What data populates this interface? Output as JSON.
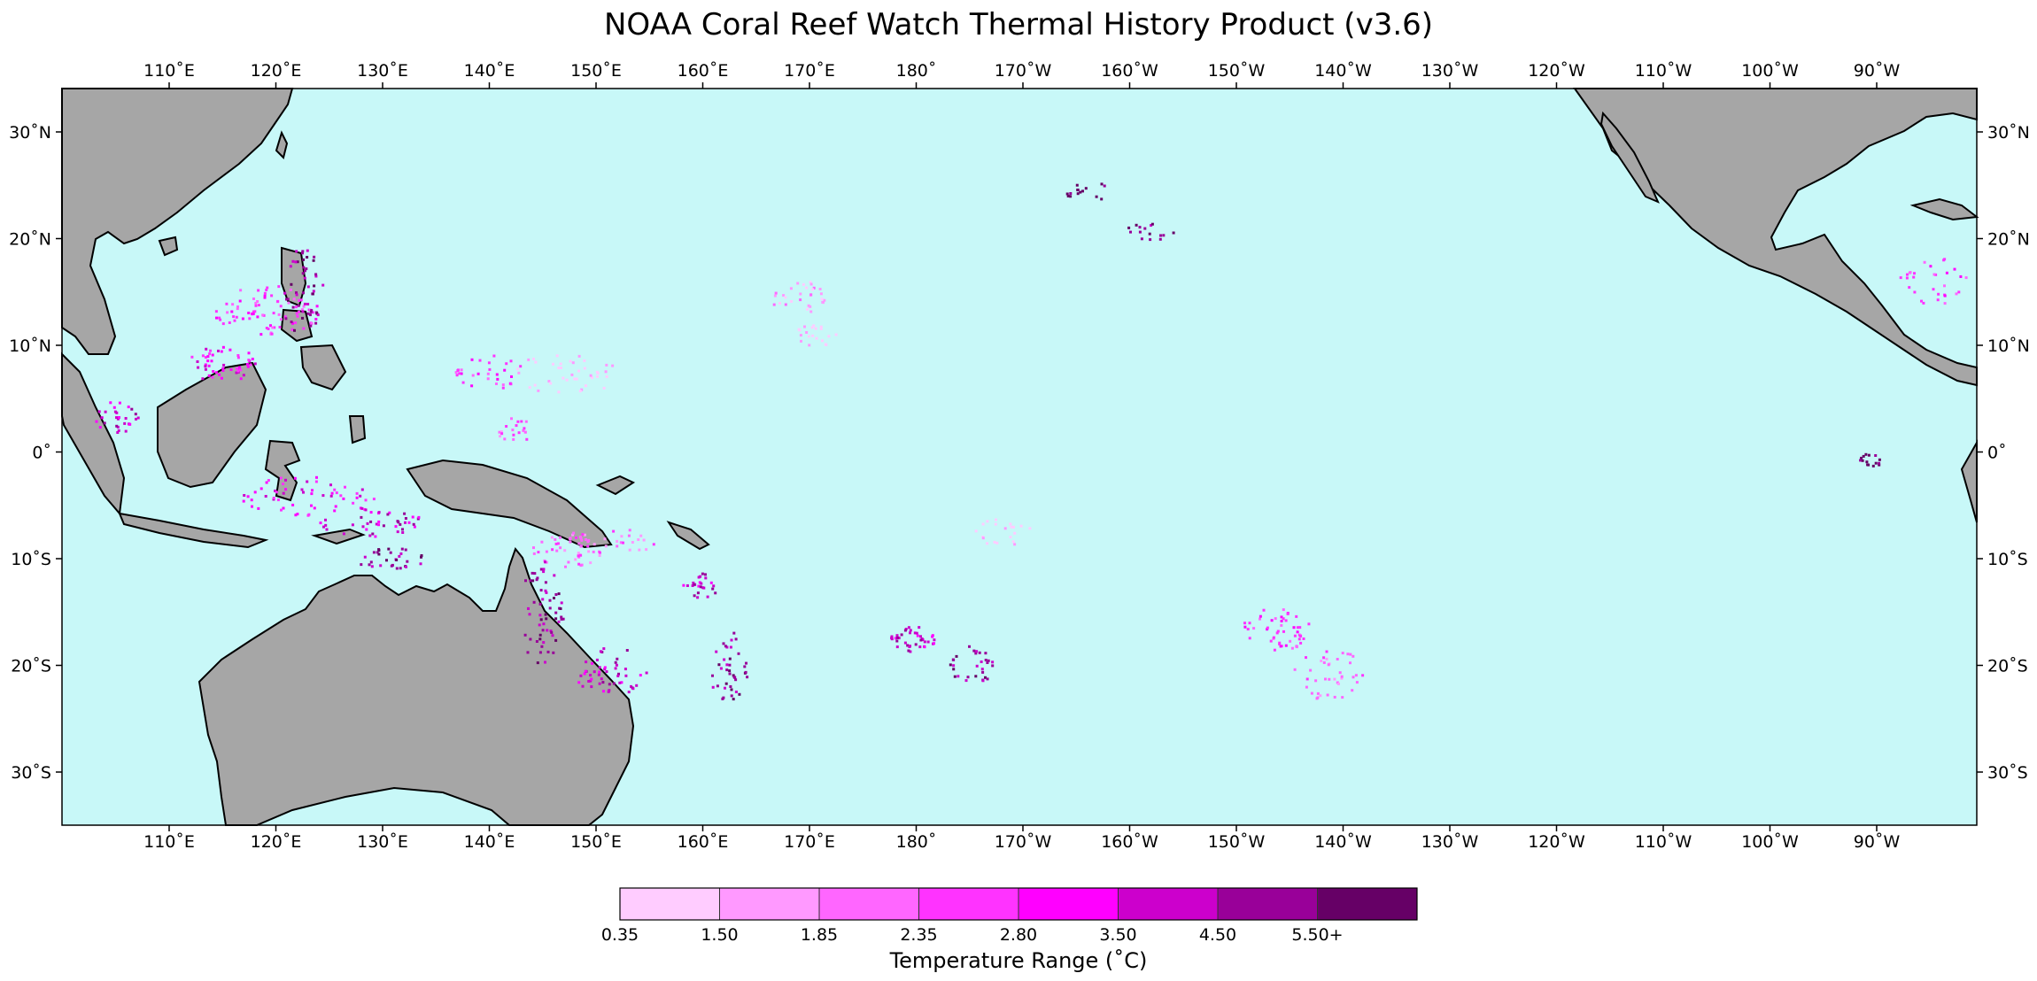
{
  "title": "NOAA Coral Reef Watch Thermal History Product (v3.6)",
  "map": {
    "ocean_color": "#c8f8f8",
    "land_color": "#a6a6a6",
    "lon_ticks": [
      "110˚E",
      "120˚E",
      "130˚E",
      "140˚E",
      "150˚E",
      "160˚E",
      "170˚E",
      "180˚",
      "170˚W",
      "160˚W",
      "150˚W",
      "140˚W",
      "130˚W",
      "120˚W",
      "110˚W",
      "100˚W",
      "90˚W"
    ],
    "lat_ticks": [
      "30˚N",
      "20˚N",
      "10˚N",
      "0˚",
      "10˚S",
      "20˚S",
      "30˚S"
    ]
  },
  "colorbar": {
    "title": "Temperature Range (˚C)",
    "labels": [
      "0.35",
      "1.50",
      "1.85",
      "2.35",
      "2.80",
      "3.50",
      "4.50",
      "5.50+"
    ],
    "colors": [
      "#ffccff",
      "#ff99ff",
      "#ff66ff",
      "#ff33ff",
      "#ff00ff",
      "#cc00cc",
      "#990099",
      "#660066"
    ]
  }
}
